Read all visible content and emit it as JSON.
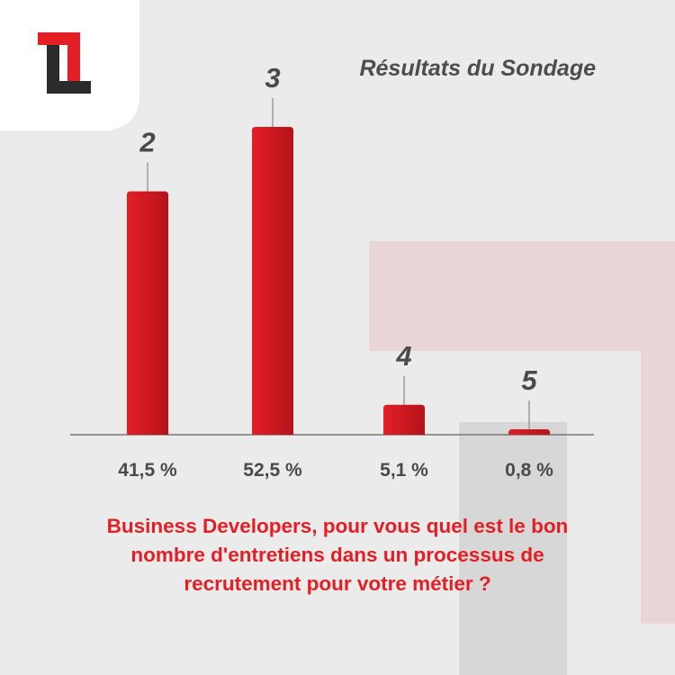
{
  "brand": {
    "logo_icon": "tl-logo-icon",
    "colors": {
      "red": "#e31e24",
      "dark": "#2b2b2b",
      "card": "#ffffff",
      "background": "#ebebeb"
    }
  },
  "chart_data": {
    "type": "bar",
    "title": "Résultats du Sondage",
    "xlabel": "",
    "ylabel": "",
    "categories": [
      "2",
      "3",
      "4",
      "5"
    ],
    "values": [
      41.5,
      52.5,
      5.1,
      0.8
    ],
    "value_labels": [
      "41,5 %",
      "52,5 %",
      "5,1 %",
      "0,8 %"
    ],
    "ylim": [
      0,
      60
    ],
    "grid": false,
    "legend": "none",
    "bar_color": "#d51920"
  },
  "question": {
    "line1": "Business Developers, pour vous quel est le bon",
    "line2": "nombre d'entretiens dans un processus de",
    "line3": "recrutement pour votre métier ?"
  }
}
